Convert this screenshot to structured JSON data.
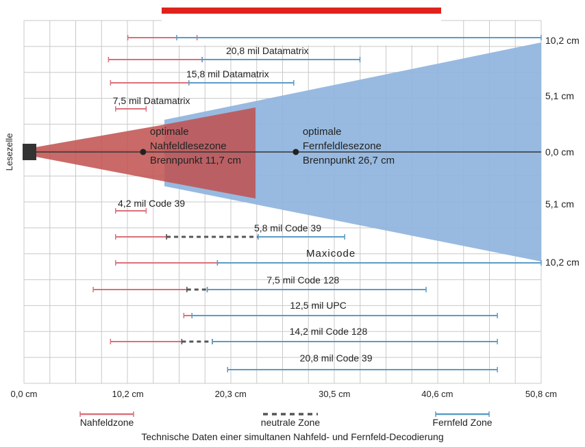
{
  "caption": "Technische Daten einer simultanen Nahfeld- und Fernfeld-Decodierung",
  "y_axis_label": "Lesezelle",
  "colors": {
    "near": "#d9707a",
    "far": "#5b9bc6",
    "neutral": "#555555",
    "near_zone_fill": "#c0504d",
    "far_zone_fill": "#8fb4dd",
    "grid": "#c8c8c8",
    "banner": "#e0221c"
  },
  "chart_data": {
    "type": "range-bar",
    "xlabel": "",
    "ylabel": "Lesezelle",
    "xlim": [
      0,
      50.8
    ],
    "x_ticks": [
      {
        "value": 0,
        "label": "0,0 cm"
      },
      {
        "value": 10.2,
        "label": "10,2 cm"
      },
      {
        "value": 20.3,
        "label": "20,3 cm"
      },
      {
        "value": 30.5,
        "label": "30,5 cm"
      },
      {
        "value": 40.6,
        "label": "40,6 cm"
      },
      {
        "value": 50.8,
        "label": "50,8 cm"
      }
    ],
    "right_labels": [
      {
        "value": 10.2,
        "label": "10,2 cm",
        "side": "top"
      },
      {
        "value": 5.1,
        "label": "5,1 cm",
        "side": "top"
      },
      {
        "value": 0,
        "label": "0,0 cm",
        "side": "center"
      },
      {
        "value": 5.1,
        "label": "5,1 cm",
        "side": "bottom"
      },
      {
        "value": 10.2,
        "label": "10,2 cm",
        "side": "bottom"
      }
    ],
    "zones": [
      {
        "name": "optimale Nahfeldlesezone",
        "lines": [
          "optimale",
          "Nahfeldlesezone",
          "Brennpunkt 11,7 cm"
        ],
        "focus": 11.7
      },
      {
        "name": "optimale Fernfeldlesezone",
        "lines": [
          "optimale",
          "Fernfeldlesezone",
          "Brennpunkt 26,7 cm"
        ],
        "focus": 26.7
      }
    ],
    "series": [
      {
        "label": "",
        "near": [
          10.2,
          17
        ],
        "far": [
          15,
          50.8
        ],
        "partial": true
      },
      {
        "label": "20,8 mil Datamatrix",
        "near": [
          8.3,
          17.5
        ],
        "far": [
          17.5,
          33
        ]
      },
      {
        "label": "15,8 mil Datamatrix",
        "near": [
          8.5,
          16.2
        ],
        "far": [
          16.2,
          26.5
        ]
      },
      {
        "label": "7,5 mil Datamatrix",
        "near": [
          9,
          12
        ]
      },
      {
        "label": "4,2 mil Code 39",
        "near": [
          9,
          12
        ]
      },
      {
        "label": "5,8 mil Code 39",
        "near": [
          9,
          14
        ],
        "neutral": [
          14,
          23
        ],
        "far": [
          23,
          31.5
        ]
      },
      {
        "label": "Maxicode",
        "near": [
          9,
          19
        ],
        "far": [
          19,
          50.8
        ]
      },
      {
        "label": "7,5 mil Code 128",
        "near": [
          6.8,
          16
        ],
        "neutral": [
          16,
          18
        ],
        "far": [
          18,
          39.5
        ]
      },
      {
        "label": "12,5 mil  UPC",
        "near": [
          15.7,
          16.5
        ],
        "far": [
          16.5,
          46.5
        ]
      },
      {
        "label": "14,2 mil Code 128",
        "near": [
          8.5,
          15.5
        ],
        "neutral": [
          15.5,
          18.5
        ],
        "far": [
          18.5,
          46.5
        ]
      },
      {
        "label": "20,8 mil Code 39",
        "far": [
          20,
          46.5
        ]
      }
    ],
    "legend": [
      {
        "key": "near",
        "label": "Nahfeldzone"
      },
      {
        "key": "neutral",
        "label": "neutrale Zone"
      },
      {
        "key": "far",
        "label": "Fernfeld Zone"
      }
    ]
  }
}
